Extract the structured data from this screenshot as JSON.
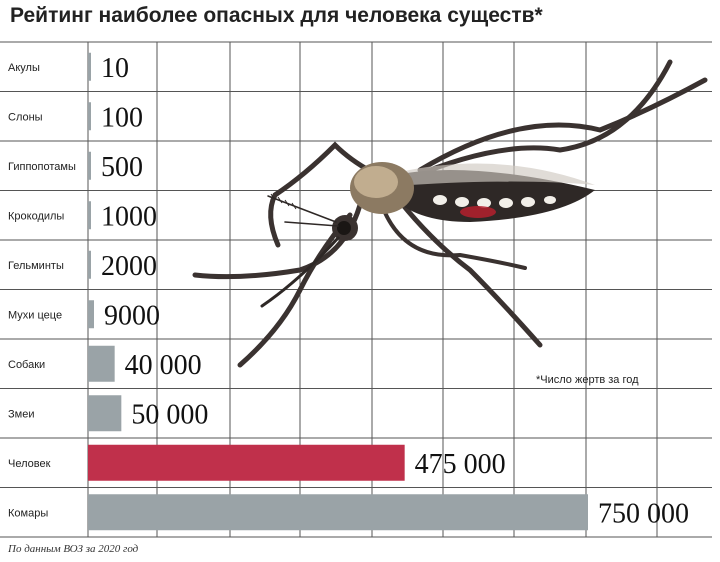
{
  "chart_data": {
    "type": "bar",
    "orientation": "horizontal",
    "title": "Рейтинг наиболее опасных для человека существ*",
    "note": "*Число жертв за год",
    "source": "По данным ВОЗ за 2020 год",
    "categories": [
      "Акулы",
      "Слоны",
      "Гиппопотамы",
      "Крокодилы",
      "Гельминты",
      "Мухи цеце",
      "Собаки",
      "Змеи",
      "Человек",
      "Комары"
    ],
    "values": [
      10,
      100,
      500,
      1000,
      2000,
      9000,
      40000,
      50000,
      475000,
      750000
    ],
    "value_labels": [
      "10",
      "100",
      "500",
      "1000",
      "2000",
      "9000",
      "40 000",
      "50 000",
      "475 000",
      "750 000"
    ],
    "xlim": [
      0,
      750000
    ],
    "grid": true,
    "colors": {
      "bar": "#9aa3a7",
      "highlight": "#c0304b",
      "grid": "#555555"
    },
    "highlight_category": "Человек",
    "illustration": "mosquito"
  }
}
